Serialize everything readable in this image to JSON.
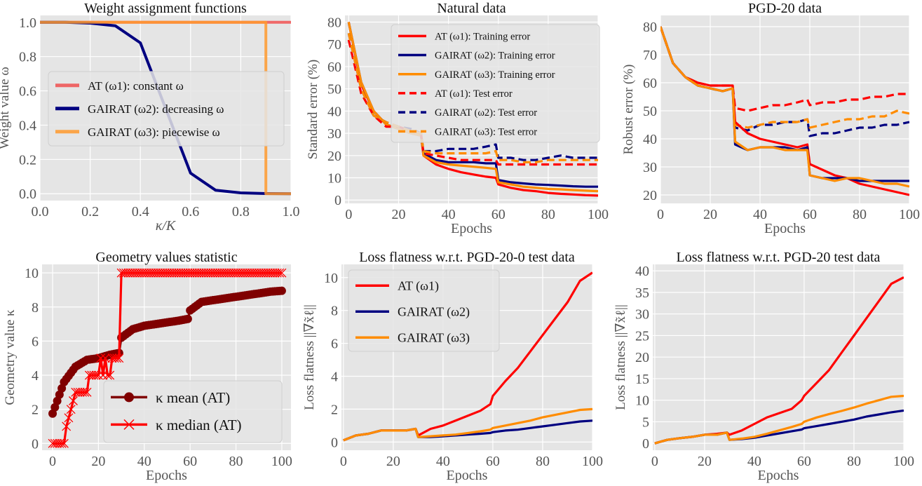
{
  "chart_data": [
    {
      "type": "line",
      "title": "Weight assignment functions",
      "xlabel": "κ/K",
      "ylabel": "Weight value ω",
      "xlim": [
        0,
        1
      ],
      "ylim": [
        0,
        1
      ],
      "xticks": [
        "0.0",
        "0.2",
        "0.4",
        "0.6",
        "0.8",
        "1.0"
      ],
      "yticks": [
        "0.0",
        "0.2",
        "0.4",
        "0.6",
        "0.8",
        "1.0"
      ],
      "grid": true,
      "legend": "center-left",
      "series": [
        {
          "name": "AT (ω1): constant ω",
          "color": "#f05050",
          "style": "solid",
          "x": [
            0,
            1
          ],
          "y": [
            1,
            1
          ]
        },
        {
          "name": "GAIRAT (ω2): decreasing ω",
          "color": "#000080",
          "style": "solid",
          "x": [
            0,
            0.1,
            0.2,
            0.3,
            0.4,
            0.5,
            0.6,
            0.7,
            0.8,
            0.9,
            1.0
          ],
          "y": [
            1,
            1,
            0.995,
            0.98,
            0.88,
            0.5,
            0.12,
            0.02,
            0.005,
            0.001,
            0
          ]
        },
        {
          "name": "GAIRAT (ω3): piecewise ω",
          "color": "#ff9a2e",
          "style": "solid",
          "x": [
            0,
            0.9,
            0.9,
            1
          ],
          "y": [
            1,
            1,
            0,
            0
          ]
        }
      ]
    },
    {
      "type": "line",
      "title": "Natural data",
      "xlabel": "Epochs",
      "ylabel": "Standard error (%)",
      "xlim": [
        0,
        100
      ],
      "ylim": [
        0,
        80
      ],
      "xticks": [
        "0",
        "20",
        "40",
        "60",
        "80",
        "100"
      ],
      "yticks": [
        "0",
        "10",
        "20",
        "30",
        "40",
        "50",
        "60",
        "70",
        "80"
      ],
      "grid": true,
      "legend": "upper-right",
      "x": [
        0,
        5,
        10,
        15,
        20,
        25,
        29,
        30,
        35,
        40,
        45,
        50,
        55,
        59,
        60,
        65,
        70,
        75,
        80,
        85,
        90,
        95,
        100
      ],
      "series": [
        {
          "name": "AT (ω1): Training error",
          "color": "#ff0000",
          "style": "solid",
          "y": [
            80,
            52,
            40,
            34,
            32,
            30,
            29,
            20,
            16,
            14,
            12.5,
            11.5,
            10.5,
            10,
            7,
            5.5,
            4.5,
            4,
            3.2,
            2.8,
            2.5,
            2.2,
            2
          ]
        },
        {
          "name": "GAIRAT (ω2): Training error",
          "color": "#000080",
          "style": "solid",
          "y": [
            80,
            53,
            40,
            34,
            32,
            30,
            29,
            21,
            18,
            17,
            17,
            17,
            16.5,
            16.5,
            9,
            8,
            7.5,
            7,
            6.8,
            6.5,
            6.2,
            6,
            6
          ]
        },
        {
          "name": "GAIRAT (ω3): Training error",
          "color": "#ff8c00",
          "style": "solid",
          "y": [
            80,
            53,
            40,
            34,
            32,
            30,
            29,
            20,
            17,
            16,
            15.5,
            15,
            14.5,
            14,
            8,
            7,
            6,
            5.5,
            5,
            4.8,
            4.5,
            4.2,
            4
          ]
        },
        {
          "name": "AT (ω1): Test error",
          "color": "#ff0000",
          "style": "dashed",
          "y": [
            72,
            48,
            38,
            33,
            33,
            31,
            30,
            21,
            20,
            19,
            18,
            18,
            18,
            18,
            16,
            16,
            16,
            16,
            16,
            16,
            16,
            16,
            16
          ]
        },
        {
          "name": "GAIRAT (ω2): Test error",
          "color": "#000080",
          "style": "dashed",
          "y": [
            75,
            50,
            38,
            35,
            33,
            32,
            30,
            22,
            22,
            23,
            23,
            23,
            24,
            25,
            19,
            19,
            18,
            18,
            19,
            20,
            19,
            19,
            19
          ]
        },
        {
          "name": "GAIRAT (ω3): Test error",
          "color": "#ff8c00",
          "style": "dashed",
          "y": [
            75,
            50,
            38,
            35,
            33,
            31,
            30,
            22,
            21,
            21,
            21,
            21,
            21,
            22,
            18,
            18,
            17,
            17,
            18,
            18,
            18,
            18,
            18
          ]
        }
      ]
    },
    {
      "type": "line",
      "title": "PGD-20 data",
      "xlabel": "Epochs",
      "ylabel": "Robust error (%)",
      "xlim": [
        0,
        100
      ],
      "ylim": [
        20,
        80
      ],
      "xticks": [
        "0",
        "20",
        "40",
        "60",
        "80",
        "100"
      ],
      "yticks": [
        "20",
        "30",
        "40",
        "50",
        "60",
        "70",
        "80"
      ],
      "grid": true,
      "legend": "none",
      "x": [
        0,
        5,
        10,
        15,
        20,
        25,
        29,
        30,
        35,
        40,
        45,
        50,
        55,
        59,
        60,
        65,
        70,
        75,
        80,
        85,
        90,
        95,
        100
      ],
      "series": [
        {
          "color": "#ff0000",
          "style": "dashed",
          "y": [
            80,
            67,
            62,
            60,
            59,
            59,
            59,
            51,
            50,
            51,
            52,
            52,
            53,
            54,
            52,
            53,
            53,
            54,
            54,
            55,
            55,
            56,
            56
          ]
        },
        {
          "color": "#000080",
          "style": "dashed",
          "y": [
            80,
            67,
            62,
            59,
            58,
            57,
            58,
            44,
            43,
            45,
            45,
            46,
            46,
            47,
            41,
            42,
            42,
            43,
            44,
            44,
            45,
            45,
            46
          ]
        },
        {
          "color": "#ff8c00",
          "style": "dashed",
          "y": [
            80,
            67,
            62,
            59,
            58,
            57,
            58,
            45,
            44,
            45,
            46,
            46,
            46,
            47,
            44,
            45,
            46,
            47,
            47,
            48,
            48,
            50,
            49
          ]
        },
        {
          "color": "#ff0000",
          "style": "solid",
          "y": [
            80,
            67,
            62,
            60,
            59,
            59,
            59,
            46,
            42,
            40,
            39,
            38,
            37,
            38,
            31,
            29,
            27,
            26,
            24,
            23,
            22,
            21,
            20
          ]
        },
        {
          "color": "#000080",
          "style": "solid",
          "y": [
            80,
            67,
            62,
            59,
            58,
            57,
            58,
            38,
            36,
            37,
            37,
            37,
            36,
            37,
            27,
            26,
            26,
            26,
            25,
            25,
            25,
            25,
            25
          ]
        },
        {
          "color": "#ff8c00",
          "style": "solid",
          "y": [
            80,
            67,
            62,
            59,
            58,
            57,
            58,
            39,
            36,
            37,
            37,
            36,
            36,
            36,
            27,
            26,
            25,
            26,
            26,
            25,
            24,
            24,
            23
          ]
        }
      ]
    },
    {
      "type": "line",
      "title": "Geometry values statistic",
      "xlabel": "Epochs",
      "ylabel": "Geometry value κ",
      "xlim": [
        0,
        100
      ],
      "ylim": [
        0,
        10
      ],
      "xticks": [
        "0",
        "20",
        "40",
        "60",
        "80",
        "100"
      ],
      "yticks": [
        "0",
        "2",
        "4",
        "6",
        "8",
        "10"
      ],
      "grid": true,
      "legend": "lower-right",
      "series": [
        {
          "name": "κ mean (AT)",
          "color": "#800000",
          "style": "solid",
          "marker": "circle",
          "x": [
            0,
            5,
            10,
            15,
            20,
            25,
            29,
            30,
            35,
            40,
            45,
            50,
            55,
            59,
            60,
            65,
            70,
            75,
            80,
            85,
            90,
            95,
            100
          ],
          "y": [
            1.75,
            3.6,
            4.5,
            4.9,
            5.0,
            5.2,
            5.3,
            6.2,
            6.7,
            6.9,
            7.0,
            7.1,
            7.2,
            7.3,
            7.8,
            8.3,
            8.4,
            8.5,
            8.6,
            8.7,
            8.8,
            8.9,
            8.95
          ]
        },
        {
          "name": "κ median (AT)",
          "color": "#ff0000",
          "style": "solid",
          "marker": "x",
          "x": [
            0,
            5,
            6,
            8,
            10,
            15,
            16,
            20,
            21,
            22,
            23,
            24,
            25,
            26,
            29,
            30,
            100
          ],
          "y": [
            0,
            0,
            1,
            2,
            3,
            3,
            4,
            4,
            5,
            4,
            5,
            4,
            4,
            5,
            5,
            10,
            10
          ]
        }
      ]
    },
    {
      "type": "line",
      "title": "Loss flatness w.r.t. PGD-20-0 test data",
      "xlabel": "Epochs",
      "ylabel": "Loss flatness ||∇x̃ℓ||",
      "xlim": [
        0,
        100
      ],
      "ylim": [
        0,
        10
      ],
      "xticks": [
        "0",
        "20",
        "40",
        "60",
        "80",
        "100"
      ],
      "yticks": [
        "0",
        "2",
        "4",
        "6",
        "8",
        "10"
      ],
      "grid": true,
      "legend": "upper-left",
      "x": [
        0,
        5,
        10,
        15,
        20,
        25,
        29,
        30,
        35,
        40,
        45,
        50,
        55,
        59,
        60,
        65,
        70,
        75,
        80,
        85,
        90,
        95,
        100
      ],
      "series": [
        {
          "name": "AT (ω1)",
          "color": "#ff0000",
          "style": "solid",
          "y": [
            0.1,
            0.4,
            0.5,
            0.7,
            0.7,
            0.7,
            0.8,
            0.4,
            0.8,
            1.0,
            1.3,
            1.6,
            1.9,
            2.3,
            2.8,
            3.7,
            4.5,
            5.5,
            6.5,
            7.5,
            8.5,
            9.8,
            10.3
          ]
        },
        {
          "name": "GAIRAT (ω2)",
          "color": "#000080",
          "style": "solid",
          "y": [
            0.1,
            0.4,
            0.5,
            0.7,
            0.7,
            0.7,
            0.8,
            0.3,
            0.3,
            0.35,
            0.4,
            0.45,
            0.5,
            0.55,
            0.6,
            0.7,
            0.75,
            0.85,
            0.95,
            1.05,
            1.15,
            1.25,
            1.3
          ]
        },
        {
          "name": "GAIRAT (ω3)",
          "color": "#ff8c00",
          "style": "solid",
          "y": [
            0.1,
            0.4,
            0.5,
            0.7,
            0.7,
            0.7,
            0.8,
            0.3,
            0.35,
            0.4,
            0.45,
            0.55,
            0.65,
            0.75,
            0.85,
            1.0,
            1.15,
            1.3,
            1.5,
            1.65,
            1.8,
            1.95,
            2.0
          ]
        }
      ]
    },
    {
      "type": "line",
      "title": "Loss flatness w.r.t. PGD-20 test data",
      "xlabel": "Epochs",
      "ylabel": "Loss flatness ||∇x̃ℓ||",
      "xlim": [
        0,
        100
      ],
      "ylim": [
        0,
        40
      ],
      "xticks": [
        "0",
        "20",
        "40",
        "60",
        "80",
        "100"
      ],
      "yticks": [
        "0",
        "5",
        "10",
        "15",
        "20",
        "25",
        "30",
        "35",
        "40"
      ],
      "grid": true,
      "legend": "none",
      "x": [
        0,
        5,
        10,
        15,
        20,
        25,
        29,
        30,
        35,
        40,
        45,
        50,
        55,
        59,
        60,
        65,
        70,
        75,
        80,
        85,
        90,
        95,
        100
      ],
      "series": [
        {
          "color": "#ff0000",
          "style": "solid",
          "y": [
            0,
            0.8,
            1.2,
            1.5,
            2,
            2.2,
            2.5,
            2,
            3,
            4.5,
            6,
            7,
            8,
            10,
            11,
            14,
            17,
            21,
            25,
            29,
            33,
            37,
            38.5
          ]
        },
        {
          "color": "#000080",
          "style": "solid",
          "y": [
            0,
            0.8,
            1.2,
            1.5,
            2,
            2,
            2.5,
            0.8,
            1,
            1.3,
            1.8,
            2.3,
            2.8,
            3.2,
            3.5,
            4,
            4.5,
            5,
            5.5,
            6.2,
            6.7,
            7.2,
            7.6
          ]
        },
        {
          "color": "#ff8c00",
          "style": "solid",
          "y": [
            0,
            0.8,
            1.2,
            1.5,
            2,
            2,
            2.5,
            0.8,
            1.1,
            1.5,
            2.2,
            3,
            3.8,
            4.5,
            5,
            6,
            6.8,
            7.5,
            8.3,
            9.2,
            10,
            10.8,
            11
          ]
        }
      ]
    }
  ]
}
